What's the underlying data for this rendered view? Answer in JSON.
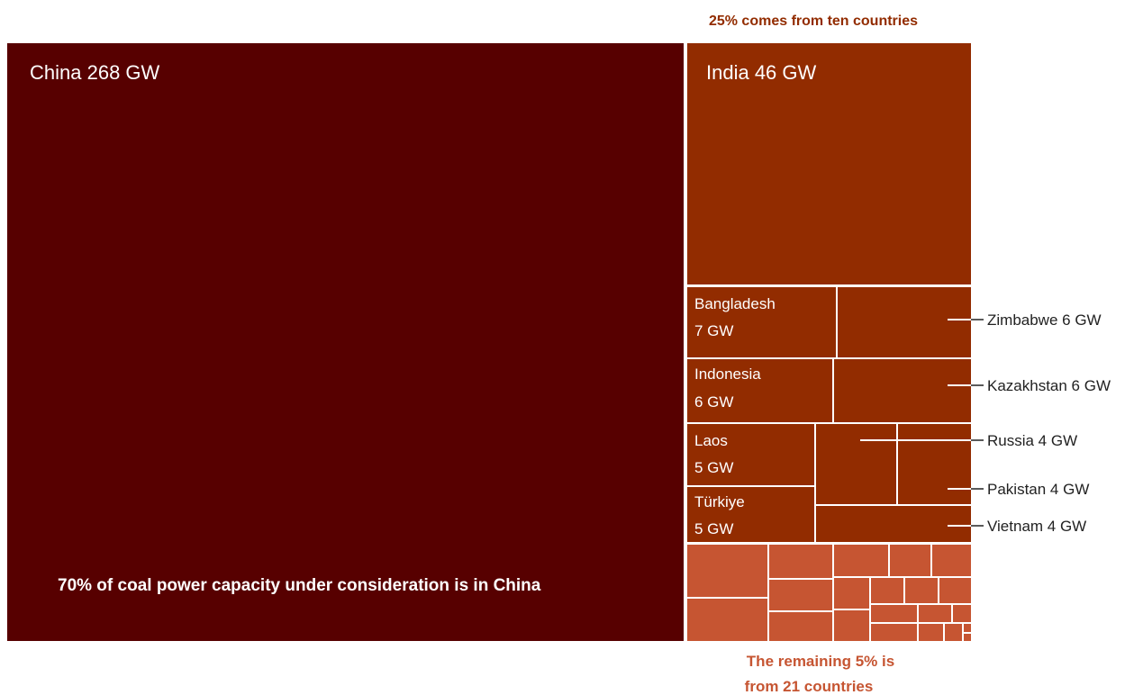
{
  "colors": {
    "china": "#570000",
    "top_ten": "#922C00",
    "remaining": "#C65532",
    "annotation_top": "#922C00",
    "annotation_bottom": "#C65532",
    "white": "#FFFFFF",
    "label_text": "#222222"
  },
  "annotations": {
    "top": "25% comes from ten countries",
    "china_note": "70% of coal power capacity under consideration is in China",
    "bottom_line1": "The remaining 5% is",
    "bottom_line2": "from 21 countries"
  },
  "chart_data": {
    "type": "treemap",
    "unit": "GW",
    "title": "",
    "groups": [
      {
        "share": "70%",
        "countries": [
          {
            "name": "China",
            "value": 268,
            "label": "China 268 GW"
          }
        ]
      },
      {
        "share": "25%",
        "countries": [
          {
            "name": "India",
            "value": 46,
            "label": "India 46 GW"
          },
          {
            "name": "Bangladesh",
            "value": 7,
            "label": "Bangladesh",
            "value_label": "7 GW"
          },
          {
            "name": "Zimbabwe",
            "value": 6,
            "label": "Zimbabwe 6 GW"
          },
          {
            "name": "Indonesia",
            "value": 6,
            "label": "Indonesia",
            "value_label": "6 GW"
          },
          {
            "name": "Kazakhstan",
            "value": 6,
            "label": "Kazakhstan 6 GW"
          },
          {
            "name": "Laos",
            "value": 5,
            "label": "Laos",
            "value_label": "5  GW"
          },
          {
            "name": "Russia",
            "value": 4,
            "label": "Russia 4 GW"
          },
          {
            "name": "Türkiye",
            "value": 5,
            "label": "Türkiye",
            "value_label": "5 GW"
          },
          {
            "name": "Pakistan",
            "value": 4,
            "label": "Pakistan 4 GW"
          },
          {
            "name": "Vietnam",
            "value": 4,
            "label": "Vietnam 4 GW"
          }
        ]
      },
      {
        "share": "5%",
        "country_count": 21
      }
    ]
  }
}
